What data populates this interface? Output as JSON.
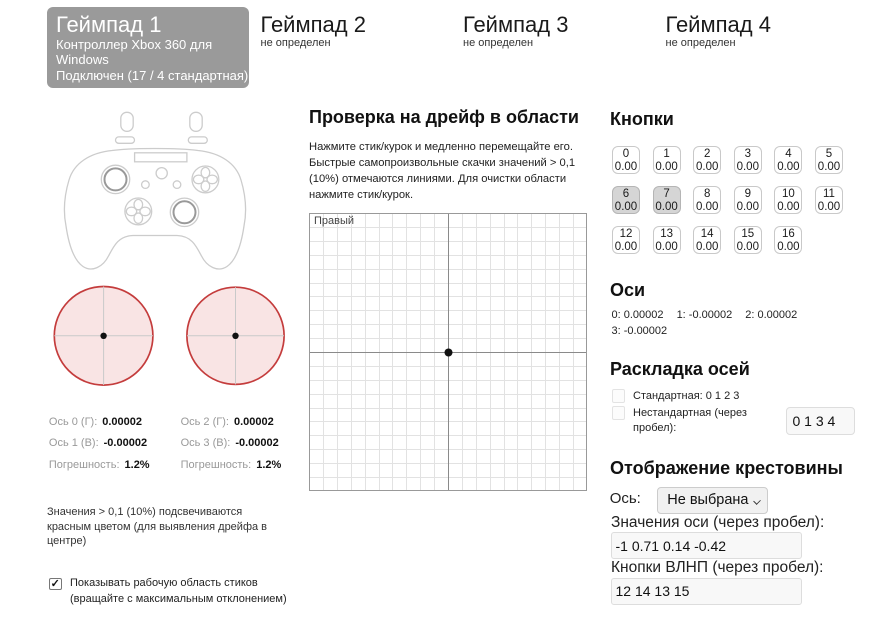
{
  "tabs": {
    "active": {
      "title": "Геймпад 1",
      "device": "Контроллер Xbox 360 для Windows",
      "connection": "Подключен (17 / 4 стандартная)"
    },
    "others": [
      {
        "title": "Геймпад 2",
        "status": "не определен"
      },
      {
        "title": "Геймпад 3",
        "status": "не определен"
      },
      {
        "title": "Геймпад 4",
        "status": "не определен"
      }
    ]
  },
  "left_panel": {
    "stick_groups": [
      {
        "rows": [
          {
            "label": "Ось 0 (Г):",
            "value": "0.00002"
          },
          {
            "label": "Ось 1 (В):",
            "value": "-0.00002"
          },
          {
            "label": "Погрешность:",
            "value": "1.2%"
          }
        ]
      },
      {
        "rows": [
          {
            "label": "Ось 2 (Г):",
            "value": "0.00002"
          },
          {
            "label": "Ось 3 (В):",
            "value": "-0.00002"
          },
          {
            "label": "Погрешность:",
            "value": "1.2%"
          }
        ]
      }
    ],
    "note": "Значения > 0,1 (10%) подсвечиваются красным цветом (для выявления дрейфа в центре)",
    "workarea_checkbox": {
      "label": "Показывать рабочую область стиков (вращайте с максимальным отклонением)",
      "checked": true,
      "checkmark": "✓"
    }
  },
  "drift_section": {
    "title": "Проверка на дрейф в области",
    "description": "Нажмите стик/курок и медленно перемещайте его. Быстрые самопроизвольные скачки значений > 0,1 (10%) отмечаются линиями. Для очистки области нажмите стик/курок.",
    "plot_label": "Правый"
  },
  "buttons_section": {
    "title": "Кнопки",
    "items": [
      {
        "index": "0",
        "value": "0.00",
        "pressed": false
      },
      {
        "index": "1",
        "value": "0.00",
        "pressed": false
      },
      {
        "index": "2",
        "value": "0.00",
        "pressed": false
      },
      {
        "index": "3",
        "value": "0.00",
        "pressed": false
      },
      {
        "index": "4",
        "value": "0.00",
        "pressed": false
      },
      {
        "index": "5",
        "value": "0.00",
        "pressed": false
      },
      {
        "index": "6",
        "value": "0.00",
        "pressed": true
      },
      {
        "index": "7",
        "value": "0.00",
        "pressed": true
      },
      {
        "index": "8",
        "value": "0.00",
        "pressed": false
      },
      {
        "index": "9",
        "value": "0.00",
        "pressed": false
      },
      {
        "index": "10",
        "value": "0.00",
        "pressed": false
      },
      {
        "index": "11",
        "value": "0.00",
        "pressed": false
      },
      {
        "index": "12",
        "value": "0.00",
        "pressed": false
      },
      {
        "index": "13",
        "value": "0.00",
        "pressed": false
      },
      {
        "index": "14",
        "value": "0.00",
        "pressed": false
      },
      {
        "index": "15",
        "value": "0.00",
        "pressed": false
      },
      {
        "index": "16",
        "value": "0.00",
        "pressed": false
      }
    ]
  },
  "axes_section": {
    "title": "Оси",
    "values": [
      "0: 0.00002",
      "1: -0.00002",
      "2: 0.00002",
      "3: -0.00002"
    ]
  },
  "layout_section": {
    "title": "Раскладка осей",
    "standard_label": "Стандартная: 0 1 2 3",
    "standard_checked": false,
    "custom_label": "Нестандартная (через пробел):",
    "custom_checked": false,
    "custom_value": "0 1 3 4"
  },
  "dpad_section": {
    "title": "Отображение крестовины",
    "axis_label": "Ось:",
    "axis_selected": "Не выбрана",
    "axis_values_label": "Значения оси (через пробел):",
    "axis_values": "-1 0.71 0.14 -0.42",
    "dpad_buttons_label": "Кнопки ВЛНП (через пробел):",
    "dpad_buttons": "12 14 13 15"
  },
  "colors": {
    "active_tab_bg": "#9a9a9a",
    "range_fill": "#f9e4e4",
    "range_stroke": "#c43c3c",
    "pressed_button_bg": "#d5d5d5"
  }
}
